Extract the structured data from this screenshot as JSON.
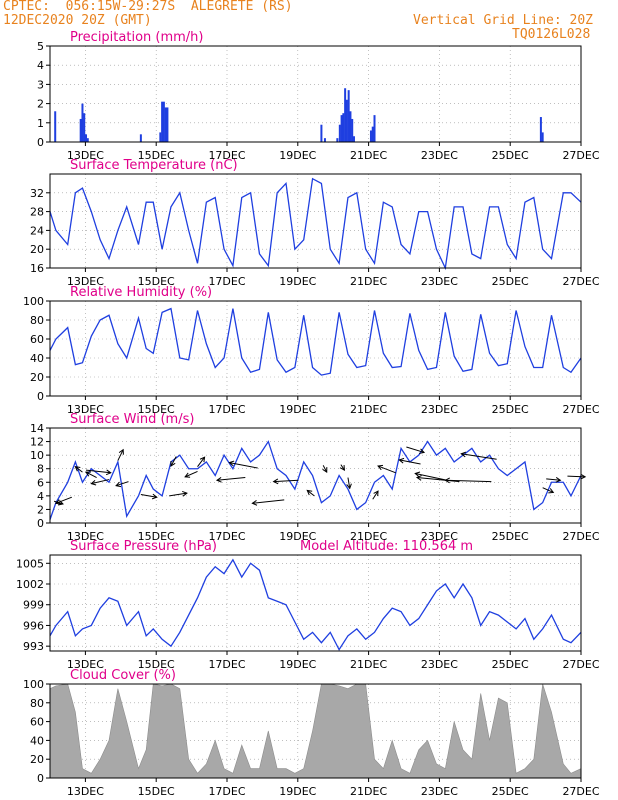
{
  "header": {
    "line1": "CPTEC:  056:15W-29:27S  ALEGRETE (RS)",
    "line2": "12DEC2020 20Z (GMT)",
    "grid_note": "Vertical Grid Line: 20Z",
    "code": "TQ0126L028",
    "colors": {
      "header": "#e8821e",
      "title": "#e0008a",
      "series": "#1f3fe0",
      "grid": "#999999"
    }
  },
  "x_axis": {
    "tick_labels": [
      "13DEC",
      "15DEC",
      "17DEC",
      "19DEC",
      "21DEC",
      "23DEC",
      "25DEC",
      "27DEC"
    ],
    "start_day": 12.833,
    "end_day": 27.833
  },
  "chart_data": [
    {
      "type": "bar",
      "title": "Precipitation (mm/h)",
      "ylim": [
        0,
        5
      ],
      "yticks": [
        0,
        1,
        2,
        3,
        4,
        5
      ],
      "points": [
        [
          12.98,
          1.6
        ],
        [
          13.7,
          1.2
        ],
        [
          13.75,
          2.0
        ],
        [
          13.8,
          1.5
        ],
        [
          13.85,
          0.4
        ],
        [
          13.9,
          0.2
        ],
        [
          15.4,
          0.4
        ],
        [
          15.95,
          0.5
        ],
        [
          16.0,
          2.1
        ],
        [
          16.05,
          2.1
        ],
        [
          16.1,
          1.8
        ],
        [
          16.15,
          1.8
        ],
        [
          20.5,
          0.9
        ],
        [
          20.6,
          0.2
        ],
        [
          20.95,
          0.2
        ],
        [
          21.02,
          0.9
        ],
        [
          21.07,
          1.4
        ],
        [
          21.12,
          1.5
        ],
        [
          21.17,
          2.8
        ],
        [
          21.22,
          2.2
        ],
        [
          21.27,
          2.7
        ],
        [
          21.32,
          1.6
        ],
        [
          21.37,
          1.2
        ],
        [
          21.42,
          0.3
        ],
        [
          21.9,
          0.6
        ],
        [
          21.95,
          0.8
        ],
        [
          22.0,
          1.4
        ],
        [
          26.7,
          1.3
        ],
        [
          26.75,
          0.5
        ]
      ]
    },
    {
      "type": "line",
      "title": "Surface Temperature (nC)",
      "ylim": [
        16,
        36
      ],
      "yticks": [
        16,
        20,
        24,
        28,
        32
      ],
      "x": [
        12.833,
        13.0,
        13.333,
        13.55,
        13.75,
        14.0,
        14.25,
        14.5,
        14.75,
        15.0,
        15.333,
        15.55,
        15.75,
        16.0,
        16.25,
        16.5,
        16.75,
        17.0,
        17.25,
        17.5,
        17.75,
        18.0,
        18.25,
        18.5,
        18.75,
        19.0,
        19.25,
        19.5,
        19.75,
        20.0,
        20.25,
        20.5,
        20.75,
        21.0,
        21.25,
        21.5,
        21.75,
        22.0,
        22.25,
        22.5,
        22.75,
        23.0,
        23.25,
        23.5,
        23.75,
        24.0,
        24.25,
        24.5,
        24.75,
        25.0,
        25.25,
        25.5,
        25.75,
        26.0,
        26.25,
        26.5,
        26.75,
        27.0,
        27.333,
        27.55,
        27.833
      ],
      "y": [
        28,
        24,
        21,
        32,
        33,
        28,
        22,
        18,
        24,
        29,
        21,
        30,
        30,
        20,
        29,
        32,
        24,
        17,
        30,
        31,
        20,
        16.5,
        31,
        32,
        19,
        16.5,
        32,
        34,
        20,
        22,
        35,
        34,
        20,
        17,
        31,
        32,
        20,
        17,
        30,
        29,
        21,
        19,
        28,
        28,
        20,
        16,
        29,
        29,
        19,
        18,
        29,
        29,
        21,
        18,
        30,
        31,
        20,
        18,
        32,
        32,
        30
      ]
    },
    {
      "type": "line",
      "title": "Relative Humidity (%)",
      "ylim": [
        0,
        100
      ],
      "yticks": [
        0,
        20,
        40,
        60,
        80,
        100
      ],
      "x": [
        12.833,
        13.0,
        13.333,
        13.55,
        13.75,
        14.0,
        14.25,
        14.5,
        14.75,
        15.0,
        15.333,
        15.55,
        15.75,
        16.0,
        16.25,
        16.5,
        16.75,
        17.0,
        17.25,
        17.5,
        17.75,
        18.0,
        18.25,
        18.5,
        18.75,
        19.0,
        19.25,
        19.5,
        19.75,
        20.0,
        20.25,
        20.5,
        20.75,
        21.0,
        21.25,
        21.5,
        21.75,
        22.0,
        22.25,
        22.5,
        22.75,
        23.0,
        23.25,
        23.5,
        23.75,
        24.0,
        24.25,
        24.5,
        24.75,
        25.0,
        25.25,
        25.5,
        25.75,
        26.0,
        26.25,
        26.5,
        26.75,
        27.0,
        27.333,
        27.55,
        27.833
      ],
      "y": [
        48,
        60,
        72,
        33,
        35,
        63,
        80,
        85,
        55,
        40,
        82,
        50,
        45,
        88,
        92,
        40,
        38,
        90,
        55,
        30,
        40,
        92,
        40,
        25,
        28,
        88,
        38,
        25,
        30,
        85,
        30,
        22,
        24,
        88,
        44,
        30,
        32,
        90,
        45,
        30,
        31,
        87,
        48,
        28,
        30,
        88,
        42,
        26,
        28,
        86,
        45,
        32,
        34,
        90,
        52,
        30,
        30,
        85,
        30,
        25,
        40
      ]
    },
    {
      "type": "line",
      "title": "Surface Wind (m/s)",
      "ylim": [
        0,
        14
      ],
      "yticks": [
        0,
        2,
        4,
        6,
        8,
        10,
        12,
        14
      ],
      "x": [
        12.833,
        13.0,
        13.333,
        13.55,
        13.75,
        14.0,
        14.25,
        14.5,
        14.75,
        15.0,
        15.333,
        15.55,
        15.75,
        16.0,
        16.25,
        16.5,
        16.75,
        17.0,
        17.25,
        17.5,
        17.75,
        18.0,
        18.25,
        18.5,
        18.75,
        19.0,
        19.25,
        19.5,
        19.75,
        20.0,
        20.25,
        20.5,
        20.75,
        21.0,
        21.25,
        21.5,
        21.75,
        22.0,
        22.25,
        22.5,
        22.75,
        23.0,
        23.25,
        23.5,
        23.75,
        24.0,
        24.25,
        24.5,
        24.75,
        25.0,
        25.25,
        25.5,
        25.75,
        26.0,
        26.25,
        26.5,
        26.75,
        27.0,
        27.333,
        27.55,
        27.833
      ],
      "y": [
        0.5,
        3,
        6,
        9,
        6,
        8,
        7,
        6,
        9,
        1,
        4,
        7,
        5,
        4,
        9,
        10,
        8,
        8,
        9,
        7,
        10,
        8,
        11,
        9,
        10,
        12,
        8,
        7,
        5,
        9,
        7,
        3,
        4,
        7,
        5,
        2,
        3,
        6,
        7,
        5,
        11,
        9,
        10,
        12,
        10,
        11,
        9,
        10,
        11,
        9,
        10,
        8,
        7,
        8,
        9,
        2,
        3,
        6,
        6,
        4,
        7
      ],
      "arrows": [
        [
          12.95,
          3.2,
          0.25,
          -0.2
        ],
        [
          13.45,
          3.8,
          -0.45,
          -0.45
        ],
        [
          13.75,
          7.5,
          -0.2,
          0.4
        ],
        [
          13.85,
          7.8,
          0.7,
          -0.2
        ],
        [
          14.15,
          6.7,
          -0.3,
          0.4
        ],
        [
          14.5,
          6.4,
          -0.5,
          -0.3
        ],
        [
          14.75,
          9.2,
          0.15,
          0.8
        ],
        [
          15.05,
          6.1,
          -0.35,
          -0.3
        ],
        [
          15.4,
          4.2,
          0.45,
          -0.2
        ],
        [
          16.2,
          4.0,
          0.5,
          0.2
        ],
        [
          16.4,
          9.8,
          -0.15,
          -0.7
        ],
        [
          17.0,
          8.3,
          0.2,
          0.7
        ],
        [
          17.0,
          7.6,
          -0.35,
          -0.4
        ],
        [
          18.35,
          6.7,
          -0.8,
          -0.2
        ],
        [
          18.7,
          8.1,
          -0.8,
          0.4
        ],
        [
          19.45,
          3.4,
          -0.9,
          -0.25
        ],
        [
          19.85,
          6.3,
          -0.7,
          -0.1
        ],
        [
          20.3,
          4.0,
          -0.2,
          0.4
        ],
        [
          20.55,
          8.5,
          0.1,
          -0.5
        ],
        [
          21.05,
          8.6,
          0.1,
          -0.4
        ],
        [
          21.25,
          6.7,
          0.05,
          -0.8
        ],
        [
          21.95,
          3.5,
          0.15,
          0.6
        ],
        [
          22.6,
          7.4,
          -0.5,
          0.5
        ],
        [
          22.9,
          11.2,
          0.5,
          -0.4
        ],
        [
          23.3,
          8.7,
          -0.6,
          0.3
        ],
        [
          24.05,
          6.3,
          -0.9,
          0.5
        ],
        [
          24.4,
          6.1,
          -1.2,
          0.3
        ],
        [
          25.3,
          6.1,
          -1.3,
          0.1
        ],
        [
          25.45,
          9.4,
          -1.0,
          0.4
        ],
        [
          26.75,
          5.2,
          0.3,
          -0.35
        ],
        [
          26.85,
          6.5,
          0.4,
          -0.1
        ],
        [
          27.45,
          6.9,
          0.5,
          -0.05
        ]
      ]
    },
    {
      "type": "line",
      "title": "Surface Pressure (hPa)",
      "annotation": "Model Altitude: 110.564 m",
      "ylim": [
        992.3,
        1006.2
      ],
      "yticks": [
        993,
        996,
        999,
        1002,
        1005
      ],
      "x": [
        12.833,
        13.0,
        13.333,
        13.55,
        13.75,
        14.0,
        14.25,
        14.5,
        14.75,
        15.0,
        15.333,
        15.55,
        15.75,
        16.0,
        16.25,
        16.5,
        16.75,
        17.0,
        17.25,
        17.5,
        17.75,
        18.0,
        18.25,
        18.5,
        18.75,
        19.0,
        19.25,
        19.5,
        19.75,
        20.0,
        20.25,
        20.5,
        20.75,
        21.0,
        21.25,
        21.5,
        21.75,
        22.0,
        22.25,
        22.5,
        22.75,
        23.0,
        23.25,
        23.5,
        23.75,
        24.0,
        24.25,
        24.5,
        24.75,
        25.0,
        25.25,
        25.5,
        25.75,
        26.0,
        26.25,
        26.5,
        26.75,
        27.0,
        27.333,
        27.55,
        27.833
      ],
      "y": [
        994.5,
        996,
        998,
        994.5,
        995.5,
        996,
        998.5,
        1000,
        999.5,
        996,
        998,
        994.5,
        995.5,
        994,
        993,
        995,
        997.5,
        1000,
        1003,
        1004.5,
        1003.5,
        1005.5,
        1003,
        1005,
        1004,
        1000,
        999.5,
        999,
        996.5,
        994,
        995,
        993.5,
        995,
        992.5,
        994.5,
        995.5,
        994,
        995,
        997,
        998.5,
        998,
        996,
        997,
        999,
        1001,
        1002,
        1000,
        1002,
        1000,
        996,
        998,
        997.5,
        996.5,
        995.5,
        997,
        994,
        995.5,
        997.5,
        994,
        993.5,
        995
      ]
    },
    {
      "type": "bar",
      "title": "Cloud Cover (%)",
      "ylim": [
        0,
        100
      ],
      "yticks": [
        0,
        20,
        40,
        60,
        80,
        100
      ],
      "x": [
        12.833,
        13.0,
        13.333,
        13.55,
        13.75,
        14.0,
        14.25,
        14.5,
        14.75,
        15.0,
        15.333,
        15.55,
        15.75,
        16.0,
        16.25,
        16.5,
        16.75,
        17.0,
        17.25,
        17.5,
        17.75,
        18.0,
        18.25,
        18.5,
        18.75,
        19.0,
        19.25,
        19.5,
        19.75,
        20.0,
        20.25,
        20.5,
        20.75,
        21.0,
        21.25,
        21.5,
        21.75,
        22.0,
        22.25,
        22.5,
        22.75,
        23.0,
        23.25,
        23.5,
        23.75,
        24.0,
        24.25,
        24.5,
        24.75,
        25.0,
        25.25,
        25.5,
        25.75,
        26.0,
        26.25,
        26.5,
        26.75,
        27.0,
        27.333,
        27.55,
        27.833
      ],
      "y": [
        95,
        98,
        100,
        70,
        10,
        5,
        20,
        40,
        95,
        60,
        10,
        30,
        100,
        98,
        100,
        95,
        20,
        5,
        15,
        40,
        10,
        5,
        35,
        10,
        10,
        50,
        10,
        10,
        5,
        10,
        50,
        100,
        100,
        98,
        95,
        100,
        100,
        20,
        10,
        40,
        10,
        5,
        30,
        40,
        15,
        10,
        60,
        30,
        20,
        90,
        40,
        85,
        80,
        5,
        10,
        20,
        100,
        70,
        15,
        5,
        10
      ]
    }
  ]
}
